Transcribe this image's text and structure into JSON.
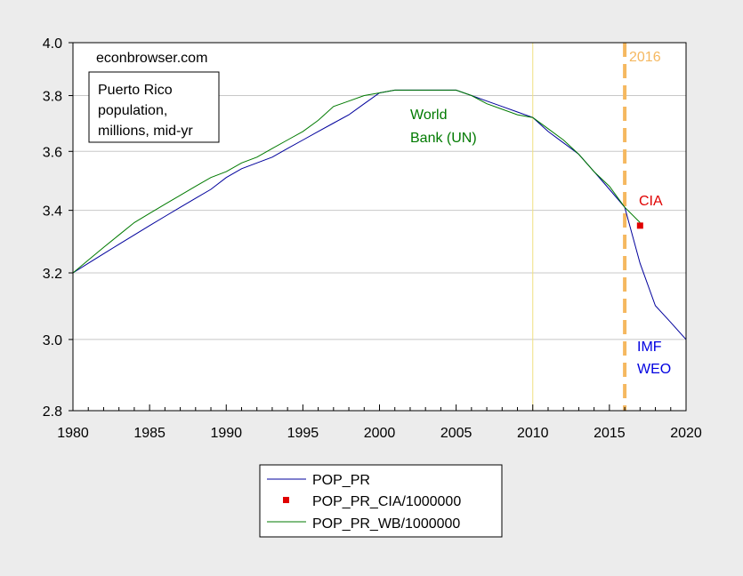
{
  "chart_data": {
    "type": "line",
    "title": "",
    "xlabel": "",
    "ylabel": "",
    "xlim": [
      1980,
      2020
    ],
    "ylim": [
      2.8,
      4.0
    ],
    "y_scale": "log",
    "grid": true,
    "legend_placement": "bottom-center",
    "x_ticks": [
      1980,
      1985,
      1990,
      1995,
      2000,
      2005,
      2010,
      2015,
      2020
    ],
    "y_ticks": [
      2.8,
      3.0,
      3.2,
      3.4,
      3.6,
      3.8,
      4.0
    ],
    "series": [
      {
        "name": "POP_PR",
        "color": "#00009c",
        "style": "line",
        "x": [
          1980,
          1981,
          1982,
          1983,
          1984,
          1985,
          1986,
          1987,
          1988,
          1989,
          1990,
          1991,
          1992,
          1993,
          1994,
          1995,
          1996,
          1997,
          1998,
          1999,
          2000,
          2001,
          2002,
          2003,
          2004,
          2005,
          2006,
          2007,
          2008,
          2009,
          2010,
          2011,
          2012,
          2013,
          2014,
          2015,
          2016,
          2017,
          2018,
          2019,
          2020
        ],
        "values": [
          3.2,
          3.23,
          3.26,
          3.29,
          3.32,
          3.35,
          3.38,
          3.41,
          3.44,
          3.47,
          3.51,
          3.54,
          3.56,
          3.58,
          3.61,
          3.64,
          3.67,
          3.7,
          3.73,
          3.77,
          3.81,
          3.82,
          3.82,
          3.82,
          3.82,
          3.82,
          3.8,
          3.78,
          3.76,
          3.74,
          3.72,
          3.67,
          3.63,
          3.59,
          3.53,
          3.47,
          3.41,
          3.23,
          3.1,
          3.05,
          3.0
        ]
      },
      {
        "name": "POP_PR_CIA/1000000",
        "color": "#e00000",
        "style": "marker",
        "x": [
          2017
        ],
        "values": [
          3.35
        ]
      },
      {
        "name": "POP_PR_WB/1000000",
        "color": "#007a00",
        "style": "line",
        "x": [
          1980,
          1981,
          1982,
          1983,
          1984,
          1985,
          1986,
          1987,
          1988,
          1989,
          1990,
          1991,
          1992,
          1993,
          1994,
          1995,
          1996,
          1997,
          1998,
          1999,
          2000,
          2001,
          2002,
          2003,
          2004,
          2005,
          2006,
          2007,
          2008,
          2009,
          2010,
          2011,
          2012,
          2013,
          2014,
          2015,
          2016,
          2017
        ],
        "values": [
          3.2,
          3.24,
          3.28,
          3.32,
          3.36,
          3.39,
          3.42,
          3.45,
          3.48,
          3.51,
          3.53,
          3.56,
          3.58,
          3.61,
          3.64,
          3.67,
          3.71,
          3.76,
          3.78,
          3.8,
          3.81,
          3.82,
          3.82,
          3.82,
          3.82,
          3.82,
          3.8,
          3.77,
          3.75,
          3.73,
          3.72,
          3.68,
          3.64,
          3.59,
          3.53,
          3.48,
          3.41,
          3.36
        ]
      }
    ],
    "vertical_markers": [
      {
        "x": 2010,
        "color": "#f0e080",
        "style": "thin"
      },
      {
        "x": 2016,
        "color": "#f5b860",
        "style": "dashed-thick",
        "label": "2016"
      }
    ],
    "annotations": {
      "source": "econbrowser.com",
      "box_lines": [
        "Puerto Rico",
        "population,",
        "millions, mid-yr"
      ],
      "world_bank": [
        "World",
        "Bank (UN)"
      ],
      "cia": "CIA",
      "imf": [
        "IMF",
        "WEO"
      ]
    },
    "legend": [
      "POP_PR",
      "POP_PR_CIA/1000000",
      "POP_PR_WB/1000000"
    ]
  }
}
